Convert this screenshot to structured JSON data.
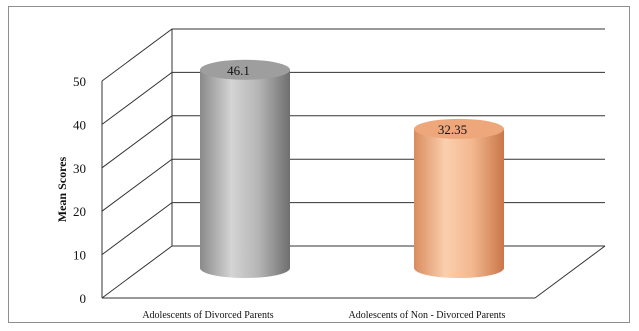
{
  "chart_data": {
    "type": "bar",
    "style": "3d-cylinder",
    "categories": [
      "Adolescents of Divorced Parents",
      "Adolescents of Non - Divorced Parents"
    ],
    "values": [
      46.1,
      32.35
    ],
    "value_labels": [
      "46.1",
      "32.35"
    ],
    "ylabel": "Mean Scores",
    "ylim": [
      0,
      50
    ],
    "yticks": [
      0,
      10,
      20,
      30,
      40,
      50
    ],
    "grid": true,
    "legend": "none",
    "colors": [
      "#a9a9a9",
      "#f2b48a"
    ]
  }
}
